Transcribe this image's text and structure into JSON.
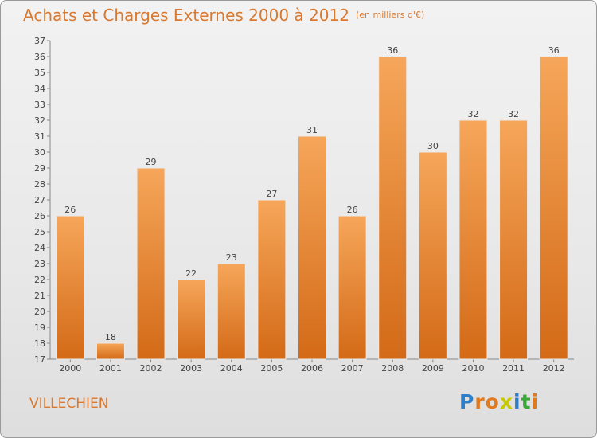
{
  "header": {
    "title": "Achats et Charges Externes 2000 à 2012",
    "unit": "(en milliers d'€)"
  },
  "footer": {
    "commune": "VILLECHIEN",
    "logo": {
      "letters": [
        "P",
        "r",
        "o",
        "x",
        "i",
        "t",
        "i"
      ],
      "colors": [
        "#2f7fc8",
        "#e07a1f",
        "#e07a1f",
        "#c8c800",
        "#2f7fc8",
        "#3aa93a",
        "#e07a1f"
      ]
    }
  },
  "colors": {
    "accent": "#d9782e",
    "bar_top": "#f6a65a",
    "bar_bottom": "#d36a17"
  },
  "chart_data": {
    "type": "bar",
    "categories": [
      "2000",
      "2001",
      "2002",
      "2003",
      "2004",
      "2005",
      "2006",
      "2007",
      "2008",
      "2009",
      "2010",
      "2011",
      "2012"
    ],
    "values": [
      26,
      18,
      29,
      22,
      23,
      27,
      31,
      26,
      36,
      30,
      32,
      32,
      36
    ],
    "ylim": [
      17,
      37
    ],
    "yticks": [
      17,
      18,
      19,
      20,
      21,
      22,
      23,
      24,
      25,
      26,
      27,
      28,
      29,
      30,
      31,
      32,
      33,
      34,
      35,
      36,
      37
    ],
    "grid": false,
    "data_labels": true
  }
}
